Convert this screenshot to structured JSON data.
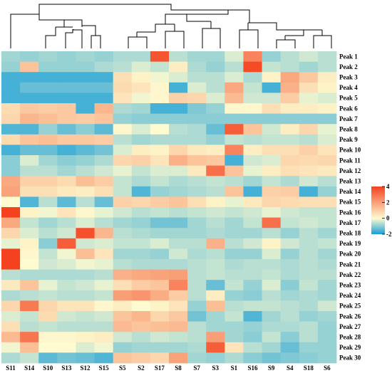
{
  "chart_data": {
    "type": "heatmap",
    "title": "",
    "xlabel": "",
    "ylabel": "",
    "columns": [
      "S11",
      "S14",
      "S10",
      "S13",
      "S12",
      "S15",
      "S5",
      "S2",
      "S17",
      "S8",
      "S7",
      "S3",
      "S1",
      "S16",
      "S9",
      "S4",
      "S18",
      "S6"
    ],
    "rows": [
      "Peak 1",
      "Peak 2",
      "Peak 3",
      "Peak 4",
      "Peak 5",
      "Peak 6",
      "Peak 7",
      "Peak 8",
      "Peak 9",
      "Peak 10",
      "Peak 11",
      "Peak 12",
      "Peak 13",
      "Peak 14",
      "Peak 15",
      "Peak 16",
      "Peak 17",
      "Peak 18",
      "Peak 19",
      "Peak 20",
      "Peak 21",
      "Peak 22",
      "Peak 23",
      "Peak 24",
      "Peak 25",
      "Peak 26",
      "Peak 27",
      "Peak 28",
      "Peak 29",
      "Peak 30"
    ],
    "values": [
      [
        -0.8,
        -0.9,
        -0.8,
        -0.9,
        -0.8,
        -0.9,
        -0.7,
        -0.7,
        3.6,
        -0.6,
        -0.8,
        -0.8,
        -0.3,
        2.6,
        -0.9,
        -0.6,
        -0.4,
        -0.6
      ],
      [
        -0.9,
        1.2,
        -0.9,
        -0.9,
        -0.9,
        -0.7,
        -0.6,
        -0.3,
        -0.5,
        0.3,
        -0.7,
        -0.9,
        -0.6,
        3.8,
        -0.5,
        -0.6,
        -0.8,
        -0.6
      ],
      [
        -1.6,
        -1.6,
        -1.6,
        -1.6,
        -1.6,
        -1.6,
        0.6,
        0.2,
        -0.1,
        -0.3,
        -0.6,
        -0.6,
        -0.3,
        -0.7,
        0.2,
        1.8,
        1.1,
        0.3
      ],
      [
        -1.6,
        -1.3,
        -1.3,
        -1.3,
        -1.3,
        -1.3,
        0.7,
        0.5,
        0.1,
        -1.6,
        -0.3,
        -0.6,
        1.8,
        -0.5,
        -1.6,
        1.6,
        0.6,
        0.2
      ],
      [
        -1.6,
        -1.6,
        -1.6,
        -1.6,
        -1.6,
        -1.6,
        0.5,
        -0.1,
        0.1,
        0.9,
        0.8,
        -0.3,
        1.4,
        -0.4,
        -0.4,
        1.0,
        -0.2,
        -0.3
      ],
      [
        0.7,
        1.1,
        1.0,
        1.1,
        -1.6,
        1.5,
        -0.7,
        -0.8,
        -1.6,
        -1.6,
        -1.1,
        -0.9,
        0.1,
        0.1,
        0.6,
        0.3,
        0.3,
        0.2
      ],
      [
        0.8,
        1.5,
        1.3,
        1.1,
        1.0,
        1.2,
        -0.9,
        -1.0,
        -1.0,
        -1.0,
        -1.0,
        -1.0,
        -1.0,
        -1.0,
        -1.0,
        -1.0,
        -1.0,
        -1.0
      ],
      [
        -1.5,
        -1.5,
        -0.9,
        -1.3,
        -1.0,
        -1.4,
        0.1,
        -0.3,
        0.0,
        -0.6,
        -0.7,
        -1.3,
        3.4,
        1.2,
        -0.4,
        0.3,
        0.8,
        -0.2
      ],
      [
        0.7,
        1.2,
        1.3,
        1.1,
        1.1,
        1.0,
        -0.6,
        -0.8,
        -0.7,
        -0.7,
        -0.7,
        -0.9,
        -0.5,
        -0.6,
        -0.5,
        -0.5,
        -0.6,
        -0.3
      ],
      [
        -1.6,
        -1.3,
        -1.3,
        -1.6,
        -1.4,
        -1.2,
        -0.3,
        0.3,
        0.2,
        0.8,
        0.4,
        0.3,
        2.6,
        0.3,
        0.6,
        0.6,
        0.9,
        0.5
      ],
      [
        -1.0,
        -0.3,
        -0.8,
        -1.0,
        -0.9,
        -0.7,
        0.8,
        0.9,
        0.5,
        1.6,
        1.2,
        1.1,
        -1.6,
        -0.4,
        -0.3,
        0.8,
        0.7,
        0.8
      ],
      [
        -1.0,
        -0.6,
        -0.6,
        -0.8,
        -0.6,
        -0.4,
        -0.2,
        -0.5,
        -0.3,
        -0.3,
        0.4,
        3.0,
        1.2,
        -0.2,
        0.3,
        0.6,
        0.5,
        0.4
      ],
      [
        1.8,
        0.9,
        0.9,
        0.7,
        1.3,
        1.0,
        -0.5,
        -0.7,
        -0.5,
        -0.7,
        -0.6,
        -0.5,
        -0.6,
        -0.8,
        -0.5,
        -0.7,
        -0.4,
        -0.6
      ],
      [
        1.9,
        0.6,
        0.6,
        0.4,
        0.3,
        0.6,
        -0.5,
        -1.5,
        -0.9,
        -0.8,
        -0.7,
        -0.6,
        1.2,
        -1.6,
        0.9,
        1.0,
        -1.6,
        -0.9
      ],
      [
        0.0,
        -1.5,
        -0.6,
        -1.4,
        -0.6,
        -1.3,
        0.9,
        0.8,
        1.0,
        1.2,
        0.6,
        0.2,
        -0.2,
        0.4,
        0.8,
        0.7,
        0.6,
        0.6
      ],
      [
        4.0,
        0.2,
        -0.1,
        0.5,
        0.1,
        -0.2,
        -0.4,
        -0.6,
        -0.5,
        -0.6,
        -0.5,
        -0.4,
        -0.5,
        -0.4,
        -0.2,
        -0.4,
        -0.5,
        -0.5
      ],
      [
        1.8,
        -0.5,
        -0.8,
        -0.6,
        -0.3,
        -0.6,
        -0.8,
        -0.9,
        -1.2,
        -1.2,
        -0.8,
        -0.6,
        -0.8,
        -0.5,
        3.0,
        -0.5,
        -0.4,
        -0.5
      ],
      [
        0.8,
        -0.3,
        -0.6,
        -0.4,
        3.7,
        1.5,
        -0.6,
        -0.7,
        -0.8,
        -0.8,
        -0.8,
        -0.7,
        -0.8,
        -0.8,
        -0.6,
        -0.9,
        -0.6,
        -0.8
      ],
      [
        -0.2,
        0.2,
        -1.0,
        3.4,
        -0.4,
        -0.3,
        -0.5,
        -0.5,
        -0.3,
        -0.6,
        -0.6,
        1.6,
        -0.6,
        -0.4,
        0.2,
        -0.4,
        -0.6,
        -0.5
      ],
      [
        4.0,
        0.1,
        -0.5,
        -0.1,
        1.3,
        0.5,
        -0.8,
        -0.8,
        -0.9,
        -0.4,
        -0.7,
        -0.6,
        -0.9,
        -0.9,
        -0.3,
        -0.9,
        -0.6,
        -0.8
      ],
      [
        4.0,
        0.0,
        -0.4,
        -0.3,
        -0.1,
        -0.2,
        -0.6,
        -0.7,
        -0.7,
        -0.7,
        -0.6,
        -0.5,
        -0.7,
        -0.6,
        -0.6,
        -0.7,
        -0.6,
        -0.7
      ],
      [
        -0.6,
        -0.7,
        -0.7,
        -0.7,
        -0.7,
        -0.6,
        1.6,
        1.8,
        1.9,
        2.0,
        -0.6,
        -0.5,
        -0.6,
        -0.6,
        -0.5,
        -0.7,
        -0.6,
        -0.6
      ],
      [
        0.4,
        1.2,
        -0.2,
        -0.5,
        -0.4,
        -0.2,
        0.6,
        1.0,
        1.2,
        2.6,
        -0.6,
        -1.3,
        -0.5,
        -0.9,
        -0.3,
        -1.0,
        -0.5,
        -0.8
      ],
      [
        -0.7,
        -0.6,
        -0.5,
        -0.6,
        -0.6,
        -0.5,
        2.0,
        2.2,
        1.7,
        1.0,
        -0.6,
        0.3,
        -0.9,
        -1.0,
        -0.6,
        -0.8,
        -0.7,
        -0.8
      ],
      [
        0.8,
        2.8,
        0.8,
        0.5,
        0.5,
        0.1,
        0.3,
        0.0,
        0.2,
        0.5,
        -0.9,
        1.3,
        -0.6,
        -0.5,
        -0.5,
        -0.6,
        -0.7,
        -0.4
      ],
      [
        -0.3,
        -0.5,
        0.7,
        -0.4,
        -0.5,
        -0.4,
        1.2,
        1.5,
        0.8,
        1.1,
        -1.2,
        -0.8,
        -0.5,
        -1.5,
        -0.8,
        -0.6,
        -0.9,
        -0.8
      ],
      [
        0.6,
        -0.6,
        -0.5,
        -0.6,
        -0.6,
        -0.6,
        1.4,
        1.2,
        1.3,
        1.4,
        -0.6,
        -0.8,
        -0.8,
        -0.9,
        -0.7,
        -0.7,
        -0.6,
        -0.9
      ],
      [
        1.4,
        2.9,
        0.1,
        0.1,
        0.2,
        0.3,
        -0.4,
        -0.6,
        -0.4,
        -0.5,
        -0.6,
        2.0,
        -0.8,
        -1.0,
        -0.5,
        -1.0,
        -0.6,
        -0.9
      ],
      [
        -0.1,
        1.3,
        0.0,
        0.0,
        -0.3,
        -0.1,
        -0.9,
        -0.8,
        -0.8,
        -0.8,
        -0.7,
        3.4,
        0.5,
        -0.6,
        -0.8,
        -1.3,
        -0.9,
        -0.9
      ],
      [
        -0.7,
        -0.5,
        -1.4,
        -1.2,
        -1.3,
        -1.5,
        1.2,
        1.0,
        0.8,
        1.9,
        -0.8,
        -0.9,
        -0.7,
        -1.0,
        -1.2,
        -1.1,
        -1.0,
        -0.9
      ]
    ],
    "color_range": [
      -2,
      4
    ],
    "colorbar_ticks": [
      "4",
      "2",
      "0",
      "-2"
    ],
    "colors": {
      "low": "#179ed7",
      "mid": "#fefbd0",
      "high": "#f4421e"
    },
    "dendrogram": "column clustering tree above the heatmap",
    "legend": "right"
  }
}
